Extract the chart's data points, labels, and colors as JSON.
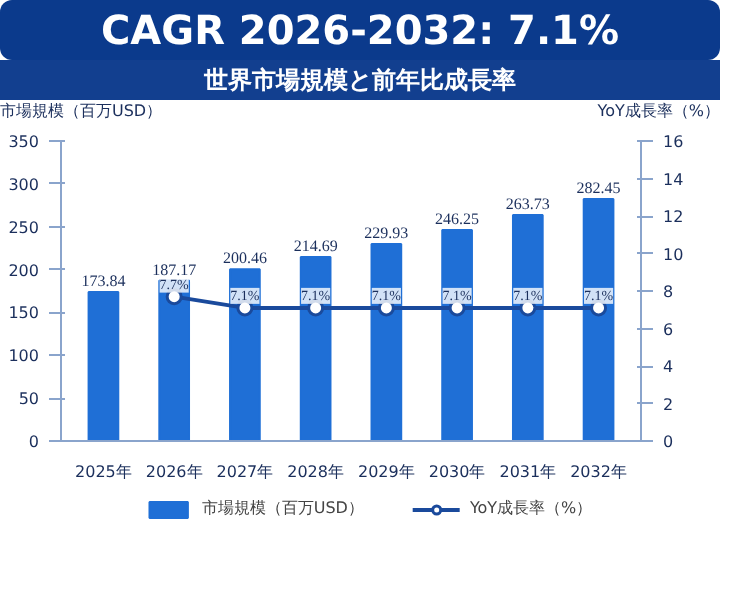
{
  "chart_data": {
    "type": "bar",
    "title": "CAGR 2026-2032: 7.1%",
    "subtitle": "世界市場規模と前年比成長率",
    "ylabel": "市場規模（百万USD）",
    "y2label": "YoY成長率（%）",
    "categories": [
      "2025年",
      "2026年",
      "2027年",
      "2028年",
      "2029年",
      "2030年",
      "2031年",
      "2032年"
    ],
    "series": [
      {
        "name": "市場規模（百万USD）",
        "color": "#1f6fd6",
        "values": [
          173.84,
          187.17,
          200.46,
          214.69,
          229.93,
          246.25,
          263.73,
          282.45
        ]
      },
      {
        "name": "YoY成長率（%）",
        "type": "line",
        "axis": "y2",
        "color": "#1a4a9c",
        "marker": "circle",
        "values": [
          null,
          7.7,
          7.1,
          7.1,
          7.1,
          7.1,
          7.1,
          7.1
        ],
        "value_labels": [
          null,
          "7.7%",
          "7.1%",
          "7.1%",
          "7.1%",
          "7.1%",
          "7.1%",
          "7.1%"
        ]
      }
    ],
    "ylim": [
      0,
      350
    ],
    "yticks": [
      0,
      50,
      100,
      150,
      200,
      250,
      300,
      350
    ],
    "y2lim": [
      0,
      16
    ],
    "y2ticks": [
      0,
      2,
      4,
      6,
      8,
      10,
      12,
      14,
      16
    ],
    "data_labels": true,
    "grid": false,
    "legend": "bottom"
  }
}
